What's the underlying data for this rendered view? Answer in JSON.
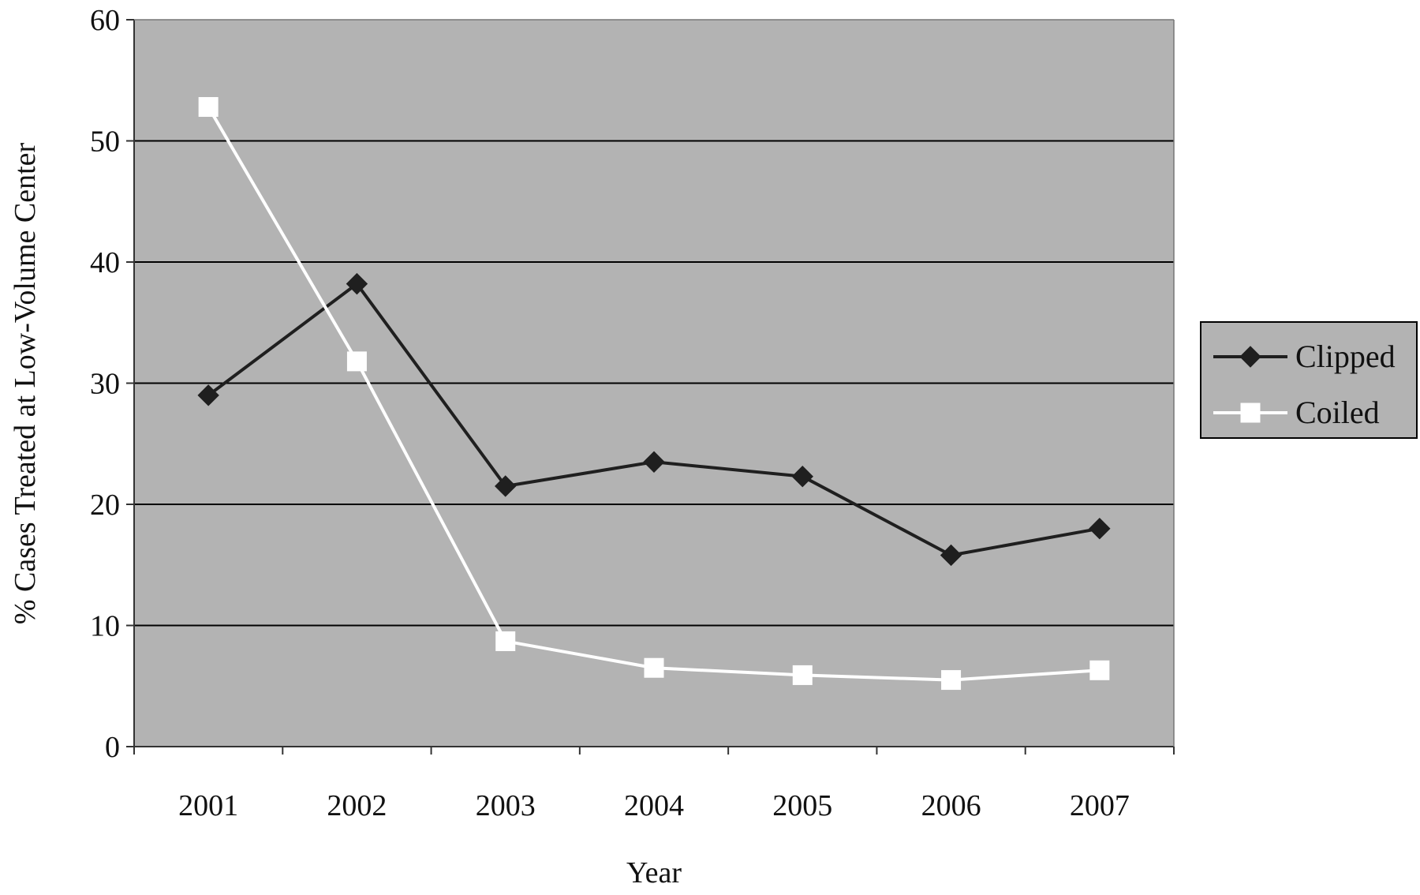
{
  "chart_data": {
    "type": "line",
    "title": "",
    "xlabel": "Year",
    "ylabel": "% Cases Treated at Low-Volume Center",
    "categories": [
      "2001",
      "2002",
      "2003",
      "2004",
      "2005",
      "2006",
      "2007"
    ],
    "ylim": [
      0,
      60
    ],
    "yticks": [
      0,
      10,
      20,
      30,
      40,
      50,
      60
    ],
    "grid": true,
    "legend": "right",
    "colors": {
      "plot_background": "#b3b3b3",
      "gridline": "#000000",
      "Clipped": "#1f1f1f",
      "Coiled": "#ffffff"
    },
    "series": [
      {
        "name": "Clipped",
        "marker": "diamond",
        "values": [
          29,
          38.2,
          21.5,
          23.5,
          22.3,
          15.8,
          18
        ]
      },
      {
        "name": "Coiled",
        "marker": "square",
        "values": [
          52.8,
          31.8,
          8.7,
          6.5,
          5.9,
          5.5,
          6.3
        ]
      }
    ]
  }
}
